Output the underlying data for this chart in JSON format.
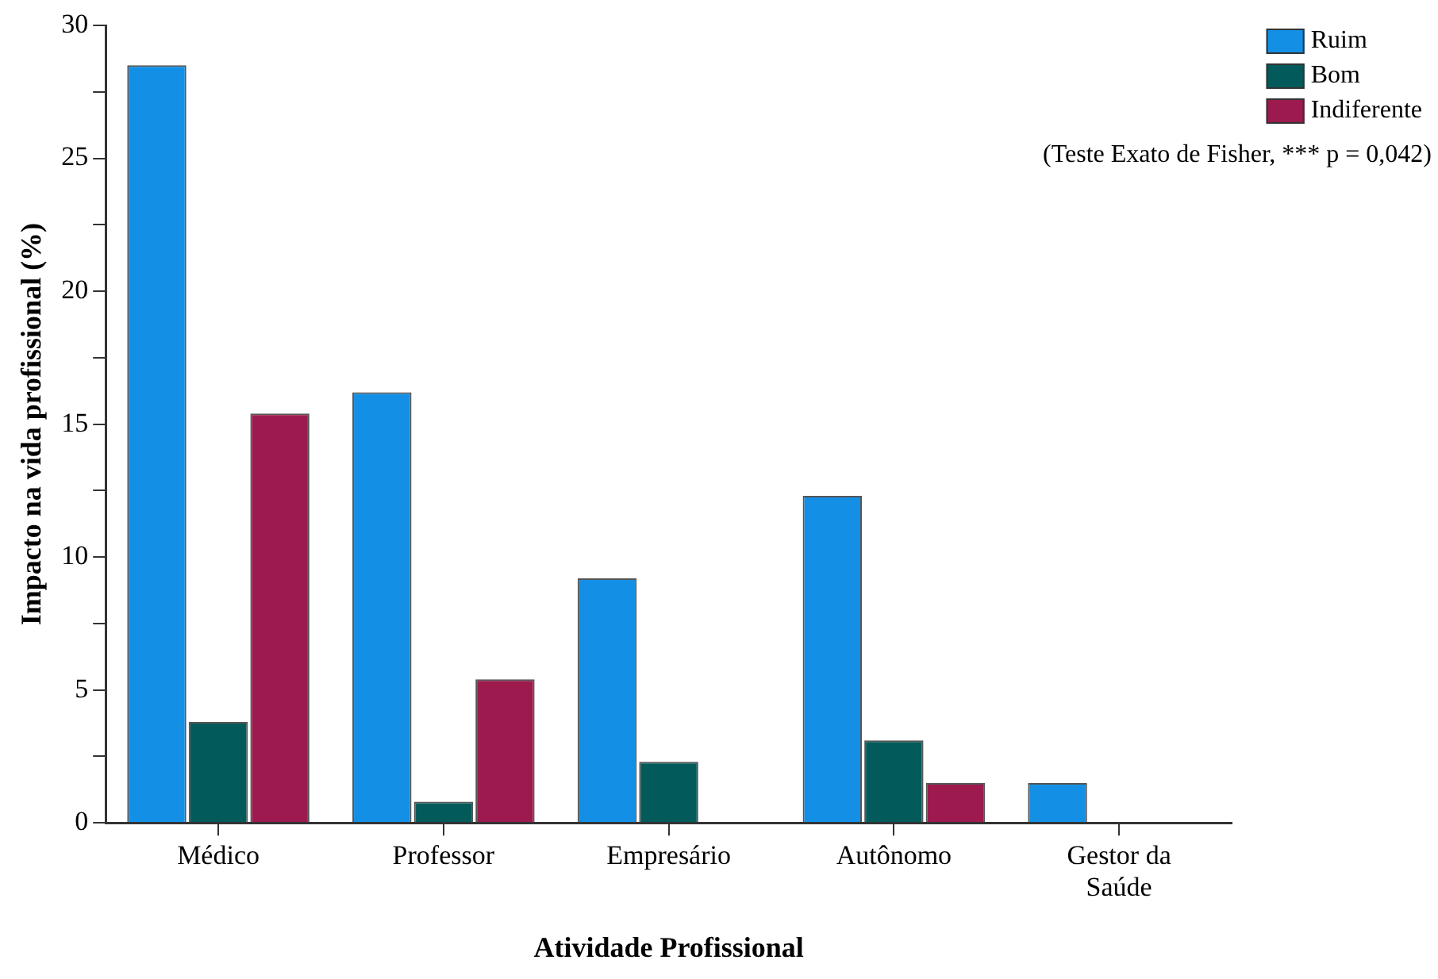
{
  "chart_data": {
    "type": "bar",
    "xlabel": "Atividade Profissional",
    "ylabel": "Impacto na vida profissional (%)",
    "categories": [
      "Médico",
      "Professor",
      "Empresário",
      "Autônomo",
      "Gestor da Saúde"
    ],
    "series": [
      {
        "name": "Ruim",
        "color": "#138fe6",
        "values": [
          28.5,
          16.2,
          9.2,
          12.3,
          1.5
        ]
      },
      {
        "name": "Bom",
        "color": "#025b5a",
        "values": [
          3.8,
          0.8,
          2.3,
          3.1,
          0
        ]
      },
      {
        "name": "Indiferente",
        "color": "#9c1a4e",
        "values": [
          15.4,
          5.4,
          0,
          1.5,
          0
        ]
      }
    ],
    "ylim": [
      0,
      30
    ],
    "yticks": [
      0,
      {
        "value": 2.5,
        "label": null
      },
      5,
      {
        "value": 7.5,
        "label": null
      },
      10,
      {
        "value": 12.5,
        "label": null
      },
      15,
      {
        "value": 17.5,
        "label": null
      },
      20,
      {
        "value": 22.5,
        "label": null
      },
      25,
      {
        "value": 27.5,
        "label": null
      },
      30
    ],
    "grid": false,
    "legend": "top right",
    "annotations": [
      "(Teste Exato de Fisher, *** p = 0,042)"
    ]
  }
}
